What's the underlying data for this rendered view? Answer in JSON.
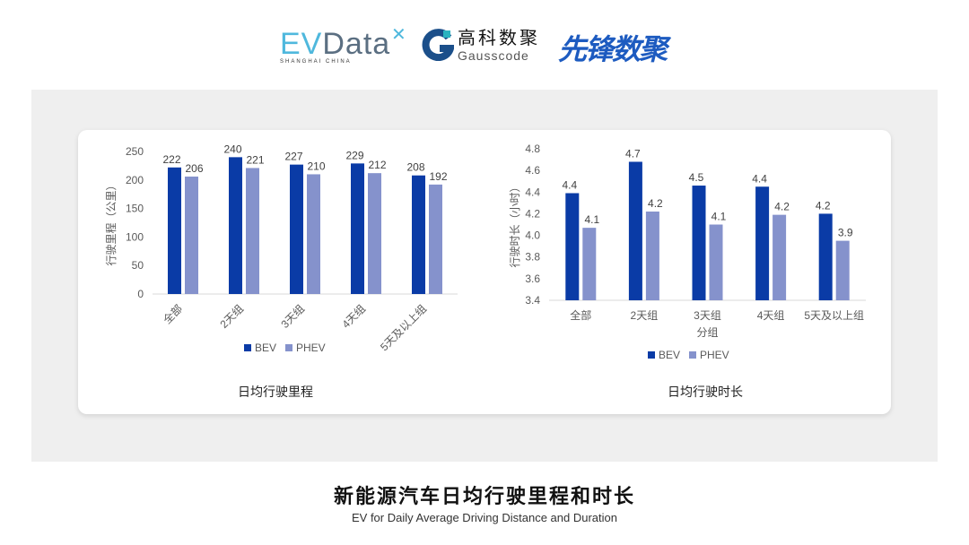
{
  "logos": {
    "evdata": "EVData",
    "evdata_sub": "SHANGHAI CHINA",
    "gauss_cn": "高科数聚",
    "gauss_en": "Gausscode",
    "xianfeng": "先锋数聚"
  },
  "colors": {
    "BEV": "#0a3ba6",
    "PHEV": "#8592cc",
    "panel": "#efefef"
  },
  "chart_data": [
    {
      "type": "bar",
      "title": "日均行驶里程",
      "ylabel": "行驶里程（公里）",
      "xlabel": "",
      "categories": [
        "全部",
        "2天组",
        "3天组",
        "4天组",
        "5天及以上组"
      ],
      "ylim": [
        0,
        250
      ],
      "yticks": [
        "0",
        "50",
        "100",
        "150",
        "200",
        "250"
      ],
      "series": [
        {
          "name": "BEV",
          "values": [
            222,
            240,
            227,
            229,
            208
          ],
          "labels": [
            "222",
            "240",
            "227",
            "229",
            "208"
          ]
        },
        {
          "name": "PHEV",
          "values": [
            206,
            221,
            210,
            212,
            192
          ],
          "labels": [
            "206",
            "221",
            "210",
            "212",
            "192"
          ]
        }
      ],
      "legend": "bottom",
      "grid": false
    },
    {
      "type": "bar",
      "title": "日均行驶时长",
      "ylabel": "行驶时长（小时）",
      "xlabel": "分组",
      "categories": [
        "全部",
        "2天组",
        "3天组",
        "4天组",
        "5天及以上组"
      ],
      "ylim": [
        3.4,
        4.8
      ],
      "yticks": [
        "3.4",
        "3.6",
        "3.8",
        "4.0",
        "4.2",
        "4.4",
        "4.6",
        "4.8"
      ],
      "series": [
        {
          "name": "BEV",
          "values": [
            4.39,
            4.68,
            4.46,
            4.45,
            4.2
          ],
          "labels": [
            "4.4",
            "4.7",
            "4.5",
            "4.4",
            "4.2"
          ]
        },
        {
          "name": "PHEV",
          "values": [
            4.07,
            4.22,
            4.1,
            4.19,
            3.95
          ],
          "labels": [
            "4.1",
            "4.2",
            "4.1",
            "4.2",
            "3.9"
          ]
        }
      ],
      "legend": "bottom",
      "grid": false
    }
  ],
  "footer": {
    "title": "新能源汽车日均行驶里程和时长",
    "subtitle": "EV for Daily Average Driving Distance and Duration"
  }
}
